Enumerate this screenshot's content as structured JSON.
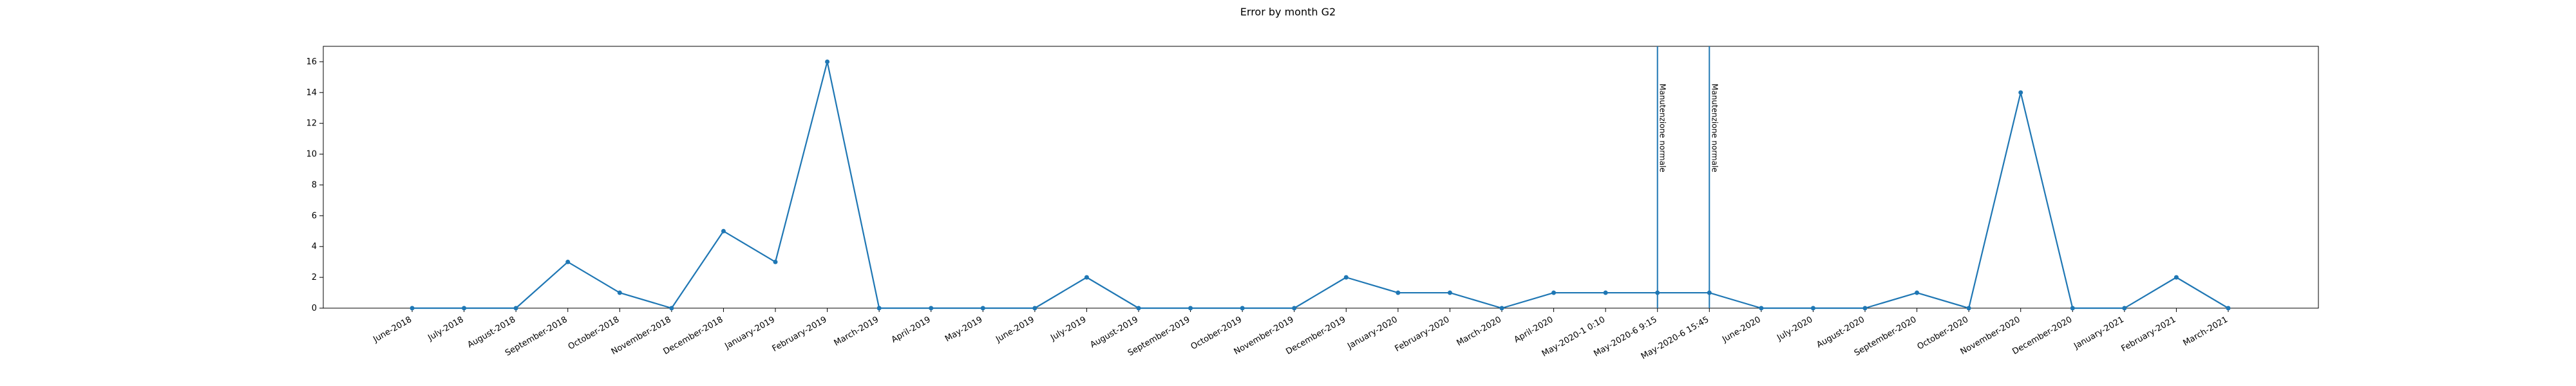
{
  "chart_data": {
    "type": "line",
    "title": "Error by month G2",
    "xlabel": "",
    "ylabel": "",
    "ylim": [
      0,
      17
    ],
    "yticks": [
      0,
      2,
      4,
      6,
      8,
      10,
      12,
      14,
      16
    ],
    "grid": false,
    "line_color": "#1f77b4",
    "categories": [
      "June-2018",
      "July-2018",
      "August-2018",
      "September-2018",
      "October-2018",
      "November-2018",
      "December-2018",
      "January-2019",
      "February-2019",
      "March-2019",
      "April-2019",
      "May-2019",
      "June-2019",
      "July-2019",
      "August-2019",
      "September-2019",
      "October-2019",
      "November-2019",
      "December-2019",
      "January-2020",
      "February-2020",
      "March-2020",
      "April-2020",
      "May-2020-1 0:10",
      "May-2020-6 9:15",
      "May-2020-6 15:45",
      "June-2020",
      "July-2020",
      "August-2020",
      "September-2020",
      "October-2020",
      "November-2020",
      "December-2020",
      "January-2021",
      "February-2021",
      "March-2021"
    ],
    "values": [
      0,
      0,
      0,
      3,
      1,
      0,
      5,
      3,
      16,
      0,
      0,
      0,
      0,
      2,
      0,
      0,
      0,
      0,
      2,
      1,
      1,
      0,
      1,
      1,
      1,
      1,
      0,
      0,
      0,
      1,
      0,
      14,
      0,
      0,
      2,
      0
    ],
    "annotations": [
      {
        "category": "May-2020-6 9:15",
        "label": "Manutenzione normale"
      },
      {
        "category": "May-2020-6 15:45",
        "label": "Manutenzione normale"
      }
    ]
  }
}
